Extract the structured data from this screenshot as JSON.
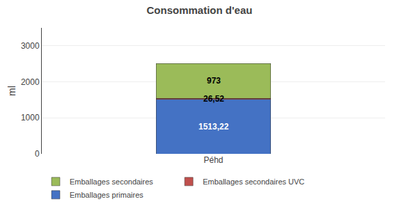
{
  "chart_data": {
    "type": "bar",
    "title": "Consommation d'eau",
    "ylabel": "ml",
    "categories": [
      "Péhd"
    ],
    "stacked": true,
    "data_labels": true,
    "grid": true,
    "legend": "bottom",
    "series": [
      {
        "name": "Emballages primaires",
        "color": "#4472C4",
        "values": [
          1513.22
        ],
        "value_labels": [
          "1513,22"
        ]
      },
      {
        "name": "Emballages secondaires UVC",
        "color": "#C0504D",
        "values": [
          26.52
        ],
        "value_labels": [
          "26,52"
        ]
      },
      {
        "name": "Emballages secondaires",
        "color": "#9BBB59",
        "values": [
          973.0
        ],
        "value_labels": [
          "973"
        ]
      }
    ],
    "ylim": [
      0,
      3500
    ],
    "yticks": [
      0,
      1000,
      2000,
      3000
    ]
  }
}
